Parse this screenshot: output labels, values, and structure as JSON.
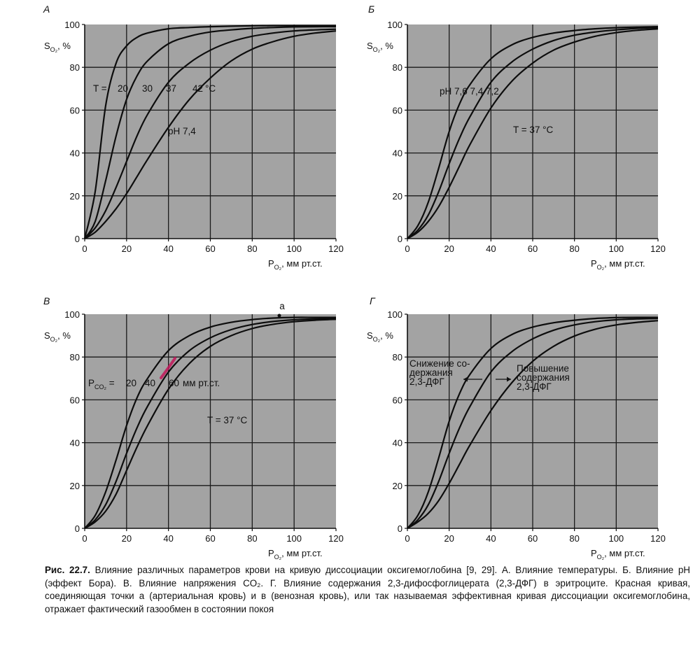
{
  "caption": {
    "label": "Рис. 22.7.",
    "text": "Влияние различных параметров крови на кривую диссоциации оксигемоглобина [9, 29]. А. Влияние температуры. Б. Влияние pH (эффект Бора). В. Влияние напряжения CO₂. Г. Влияние содержания 2,3-дифосфоглицерата (2,3-ДФГ) в эритроците. Красная кривая, соединяющая точки а (артериальная кровь) и в (венозная кровь), или так называемая эффективная кривая диссоциации оксигемоглобина, отражает фактический газообмен в состоянии покоя"
  },
  "chart_data": [
    {
      "type": "line",
      "panel": "А",
      "ylabel": "S_O2, %",
      "xlabel": "P_O2, мм рт.ст.",
      "xlim": [
        0,
        120
      ],
      "ylim": [
        0,
        100
      ],
      "xticks": [
        "0",
        "20",
        "40",
        "60",
        "80",
        "100",
        "120"
      ],
      "yticks": [
        "0",
        "20",
        "40",
        "60",
        "80",
        "100"
      ],
      "grid": true,
      "x": [
        0,
        5,
        10,
        15,
        20,
        25,
        30,
        40,
        50,
        60,
        70,
        80,
        90,
        100,
        110,
        120
      ],
      "series": [
        {
          "name": "20",
          "values": [
            0,
            22,
            62,
            82,
            90,
            94,
            96,
            98,
            98.6,
            99,
            99.2,
            99.4,
            99.5,
            99.5,
            99.5,
            99.5
          ]
        },
        {
          "name": "30",
          "values": [
            0,
            8,
            27,
            48,
            65,
            76,
            83,
            91,
            94.5,
            96.5,
            97.5,
            98.2,
            98.6,
            98.9,
            99,
            99
          ]
        },
        {
          "name": "37",
          "values": [
            0,
            5,
            13,
            24,
            36,
            48,
            58,
            73,
            82,
            88,
            92,
            94.5,
            96,
            97,
            97.5,
            97.8
          ]
        },
        {
          "name": "42",
          "values": [
            0,
            3,
            8,
            14,
            21,
            29,
            37,
            52,
            65,
            75,
            83,
            88.5,
            92,
            94.5,
            96,
            97
          ]
        }
      ],
      "annotations": {
        "temp_prefix": "T = ",
        "temp_values": [
          "20",
          "30",
          "37",
          "42"
        ],
        "temp_unit": "°C",
        "ph": "pH  7,4"
      }
    },
    {
      "type": "line",
      "panel": "Б",
      "ylabel": "S_O2, %",
      "xlabel": "P_O2, мм рт.ст.",
      "xlim": [
        0,
        120
      ],
      "ylim": [
        0,
        100
      ],
      "xticks": [
        "0",
        "20",
        "40",
        "60",
        "80",
        "100",
        "120"
      ],
      "yticks": [
        "0",
        "20",
        "40",
        "60",
        "80",
        "100"
      ],
      "grid": true,
      "x": [
        0,
        5,
        10,
        15,
        20,
        25,
        30,
        40,
        50,
        60,
        70,
        80,
        90,
        100,
        110,
        120
      ],
      "series": [
        {
          "name": "7,6",
          "values": [
            0,
            6,
            17,
            33,
            50,
            63,
            72,
            84,
            90.5,
            94,
            96,
            97.2,
            98,
            98.5,
            98.8,
            99
          ]
        },
        {
          "name": "7,4",
          "values": [
            0,
            4,
            11,
            22,
            35,
            47,
            57,
            73,
            82.5,
            88.5,
            92.5,
            95,
            96.5,
            97.5,
            98.2,
            98.6
          ]
        },
        {
          "name": "7,2",
          "values": [
            0,
            3,
            8,
            15,
            24,
            34,
            44,
            61,
            73.5,
            82,
            88,
            91.8,
            94.5,
            96.2,
            97.3,
            98
          ]
        }
      ],
      "annotations": {
        "ph_label": "pH 7,6  7,4  7,2",
        "temp": "T = 37 °C"
      }
    },
    {
      "type": "line",
      "panel": "В",
      "ylabel": "S_O2, %",
      "xlabel": "P_O2, мм рт.ст.",
      "xlim": [
        0,
        120
      ],
      "ylim": [
        0,
        100
      ],
      "xticks": [
        "0",
        "20",
        "40",
        "60",
        "80",
        "100",
        "120"
      ],
      "yticks": [
        "0",
        "20",
        "40",
        "60",
        "80",
        "100"
      ],
      "grid": true,
      "x": [
        0,
        5,
        10,
        15,
        20,
        25,
        30,
        40,
        50,
        60,
        70,
        80,
        90,
        100,
        110,
        120
      ],
      "series": [
        {
          "name": "20",
          "values": [
            0,
            6,
            17,
            32,
            48,
            61,
            70,
            83,
            90,
            94,
            96.2,
            97.5,
            98.2,
            98.5,
            98.5,
            98.5
          ]
        },
        {
          "name": "40",
          "values": [
            0,
            4,
            11,
            22,
            35,
            47,
            57,
            73,
            83,
            89,
            92.8,
            95.2,
            96.6,
            97.4,
            97.8,
            98
          ]
        },
        {
          "name": "60",
          "values": [
            0,
            3,
            8,
            16,
            27,
            38,
            48,
            65,
            77,
            85,
            90,
            93.3,
            95.3,
            96.5,
            97.2,
            97.6
          ]
        }
      ],
      "annotations": {
        "pco2_values": [
          "20",
          "40",
          "60"
        ],
        "pco2_unit": "мм рт.ст.",
        "temp": "T = 37 °C",
        "point_a": "a"
      }
    },
    {
      "type": "line",
      "panel": "Г",
      "ylabel": "S_O2, %",
      "xlabel": "P_O2, мм рт.ст.",
      "xlim": [
        0,
        120
      ],
      "ylim": [
        0,
        100
      ],
      "xticks": [
        "0",
        "20",
        "40",
        "60",
        "80",
        "100",
        "120"
      ],
      "yticks": [
        "0",
        "20",
        "40",
        "60",
        "80",
        "100"
      ],
      "grid": true,
      "x": [
        0,
        5,
        10,
        15,
        20,
        25,
        30,
        40,
        50,
        60,
        70,
        80,
        90,
        100,
        110,
        120
      ],
      "series": [
        {
          "values": [
            0,
            6,
            17,
            33,
            50,
            63,
            72,
            84,
            90.5,
            94,
            96,
            97.2,
            98,
            98.4,
            98.5,
            98.5
          ]
        },
        {
          "values": [
            0,
            4,
            11,
            22,
            35,
            47,
            57,
            73,
            82.5,
            88.5,
            92.5,
            95,
            96.5,
            97.4,
            97.8,
            98
          ]
        },
        {
          "values": [
            0,
            3,
            7,
            13,
            21,
            30,
            39,
            55,
            68,
            78,
            85,
            89.8,
            93,
            95,
            96.2,
            97
          ]
        }
      ],
      "annotations": {
        "left_lines": [
          "Снижение со-",
          "держания",
          "2,3-ДФГ"
        ],
        "right_lines": [
          "Повышение",
          "содержания",
          "2,3-ДФГ"
        ]
      }
    }
  ]
}
